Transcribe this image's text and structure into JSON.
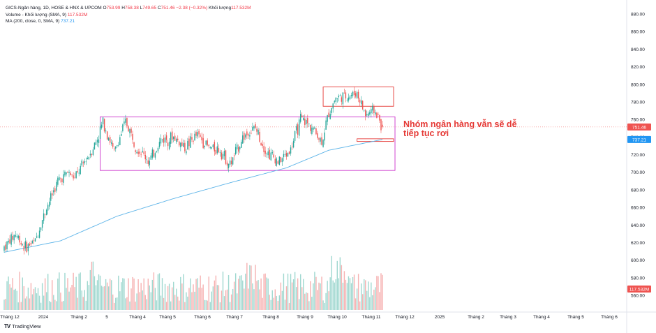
{
  "legend": {
    "symbol": "GICS-Ngân hàng, 1D, HOSE & HNX & UPCOM",
    "o_label": "O",
    "o": "753.99",
    "h_label": "H",
    "h": "758.38",
    "l_label": "L",
    "l": "749.65",
    "c_label": "C",
    "c": "751.46",
    "chg": "−2.38 (−0.32%)",
    "vol_label": "Khối lượng",
    "vol": "117.532M",
    "volume_title": "Volume - Khối lượng (SMA, 9)",
    "volume_value": "117.532M",
    "ma_title": "MA (200, close, 0, SMA, 9)",
    "ma_value": "737.21"
  },
  "annotation": {
    "line1": "Nhóm ngân hàng vẫn sẽ dễ",
    "line2": "tiếp tục rơi"
  },
  "watermark": "TradingView",
  "chart_data": {
    "type": "candlestick",
    "y_axis": {
      "range": [
        550,
        890
      ],
      "ticks": [
        "880.00",
        "860.00",
        "840.00",
        "820.00",
        "800.00",
        "780.00",
        "760.00",
        "740.00",
        "720.00",
        "700.00",
        "680.00",
        "660.00",
        "640.00",
        "620.00",
        "600.00",
        "580.00",
        "560.00"
      ],
      "price_label": "751.46",
      "ma_label": "737.21",
      "volume_label": "117.532M"
    },
    "x_axis": {
      "labels": [
        "Tháng 12",
        "2024",
        "Tháng 2",
        "5",
        "Tháng 4",
        "Tháng 5",
        "Tháng 6",
        "Tháng 7",
        "Tháng 8",
        "Tháng 9",
        "Tháng 10",
        "Tháng 11",
        "Tháng 12",
        "2025",
        "Tháng 2",
        "Tháng 3",
        "Tháng 4",
        "Tháng 5",
        "Tháng 6"
      ]
    },
    "colors": {
      "up": "#26a69a",
      "down": "#ef5350",
      "ma": "#5bb3e8",
      "box_range": "#cc33cc",
      "box_top": "#e53935",
      "box_support": "#e53935"
    },
    "price_anchors": [
      {
        "i": 0,
        "close": 615
      },
      {
        "i": 8,
        "close": 630
      },
      {
        "i": 15,
        "close": 614
      },
      {
        "i": 22,
        "close": 622
      },
      {
        "i": 30,
        "close": 660
      },
      {
        "i": 38,
        "close": 690
      },
      {
        "i": 45,
        "close": 700
      },
      {
        "i": 50,
        "close": 693
      },
      {
        "i": 57,
        "close": 712
      },
      {
        "i": 62,
        "close": 725
      },
      {
        "i": 66,
        "close": 738
      },
      {
        "i": 70,
        "close": 758
      },
      {
        "i": 78,
        "close": 722
      },
      {
        "i": 86,
        "close": 758
      },
      {
        "i": 94,
        "close": 728
      },
      {
        "i": 103,
        "close": 712
      },
      {
        "i": 111,
        "close": 737
      },
      {
        "i": 120,
        "close": 740
      },
      {
        "i": 128,
        "close": 728
      },
      {
        "i": 137,
        "close": 743
      },
      {
        "i": 145,
        "close": 728
      },
      {
        "i": 153,
        "close": 726
      },
      {
        "i": 160,
        "close": 708
      },
      {
        "i": 169,
        "close": 740
      },
      {
        "i": 178,
        "close": 750
      },
      {
        "i": 186,
        "close": 723
      },
      {
        "i": 195,
        "close": 712
      },
      {
        "i": 203,
        "close": 726
      },
      {
        "i": 210,
        "close": 760
      },
      {
        "i": 218,
        "close": 752
      },
      {
        "i": 225,
        "close": 734
      },
      {
        "i": 230,
        "close": 768
      },
      {
        "i": 235,
        "close": 785
      },
      {
        "i": 242,
        "close": 786
      },
      {
        "i": 250,
        "close": 790
      },
      {
        "i": 256,
        "close": 765
      },
      {
        "i": 262,
        "close": 771
      },
      {
        "i": 266,
        "close": 758
      },
      {
        "i": 268,
        "close": 751.46
      }
    ],
    "ma_anchors": [
      {
        "i": 0,
        "value": 609
      },
      {
        "i": 40,
        "value": 622
      },
      {
        "i": 80,
        "value": 650
      },
      {
        "i": 120,
        "value": 670
      },
      {
        "i": 160,
        "value": 688
      },
      {
        "i": 200,
        "value": 705
      },
      {
        "i": 230,
        "value": 725
      },
      {
        "i": 268,
        "value": 737.21
      }
    ],
    "boxes": [
      {
        "name": "range",
        "from_i": 68,
        "to_i": 276,
        "y_low": 702,
        "y_high": 763
      },
      {
        "name": "top",
        "from_i": 226,
        "to_i": 276,
        "y_low": 775,
        "y_high": 797
      },
      {
        "name": "support",
        "from_i": 250,
        "to_i": 276,
        "y_low": 735,
        "y_high": 738
      }
    ]
  }
}
